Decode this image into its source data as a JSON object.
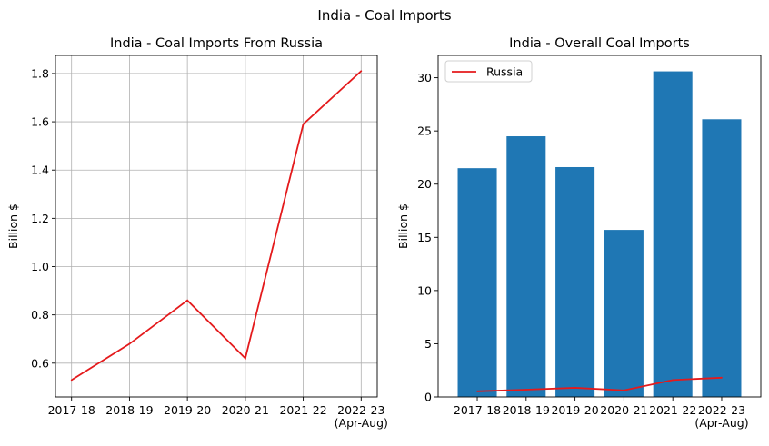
{
  "figure_title": "India - Coal Imports",
  "chart_data": [
    {
      "type": "line",
      "title": "India - Coal Imports From Russia",
      "xlabel": "",
      "ylabel": "Billion $",
      "categories": [
        "2017-18",
        "2018-19",
        "2019-20",
        "2020-21",
        "2021-22",
        "2022-23\n(Apr-Aug)"
      ],
      "series": [
        {
          "values": [
            0.53,
            0.68,
            0.86,
            0.62,
            1.59,
            1.81
          ],
          "color": "#e41a1c"
        }
      ],
      "ylim": [
        0.46,
        1.875
      ],
      "yticks": [
        "0.6",
        "0.8",
        "1.0",
        "1.2",
        "1.4",
        "1.6",
        "1.8"
      ],
      "grid": true,
      "legend": null
    },
    {
      "type": "bar",
      "title": "India - Overall Coal Imports",
      "xlabel": "",
      "ylabel": "Billion $",
      "categories": [
        "2017-18",
        "2018-19",
        "2019-20",
        "2020-21",
        "2021-22",
        "2022-23\n(Apr-Aug)"
      ],
      "series": [
        {
          "values": [
            21.5,
            24.5,
            21.6,
            15.7,
            30.6,
            26.1
          ],
          "color": "#1f77b4"
        },
        {
          "name": "Russia",
          "type": "line",
          "values": [
            0.53,
            0.68,
            0.86,
            0.62,
            1.59,
            1.81
          ],
          "color": "#e41a1c"
        }
      ],
      "ylim": [
        0,
        32.1
      ],
      "yticks": [
        "0",
        "5",
        "10",
        "15",
        "20",
        "25",
        "30"
      ],
      "grid": false,
      "legend": "top-left"
    }
  ]
}
